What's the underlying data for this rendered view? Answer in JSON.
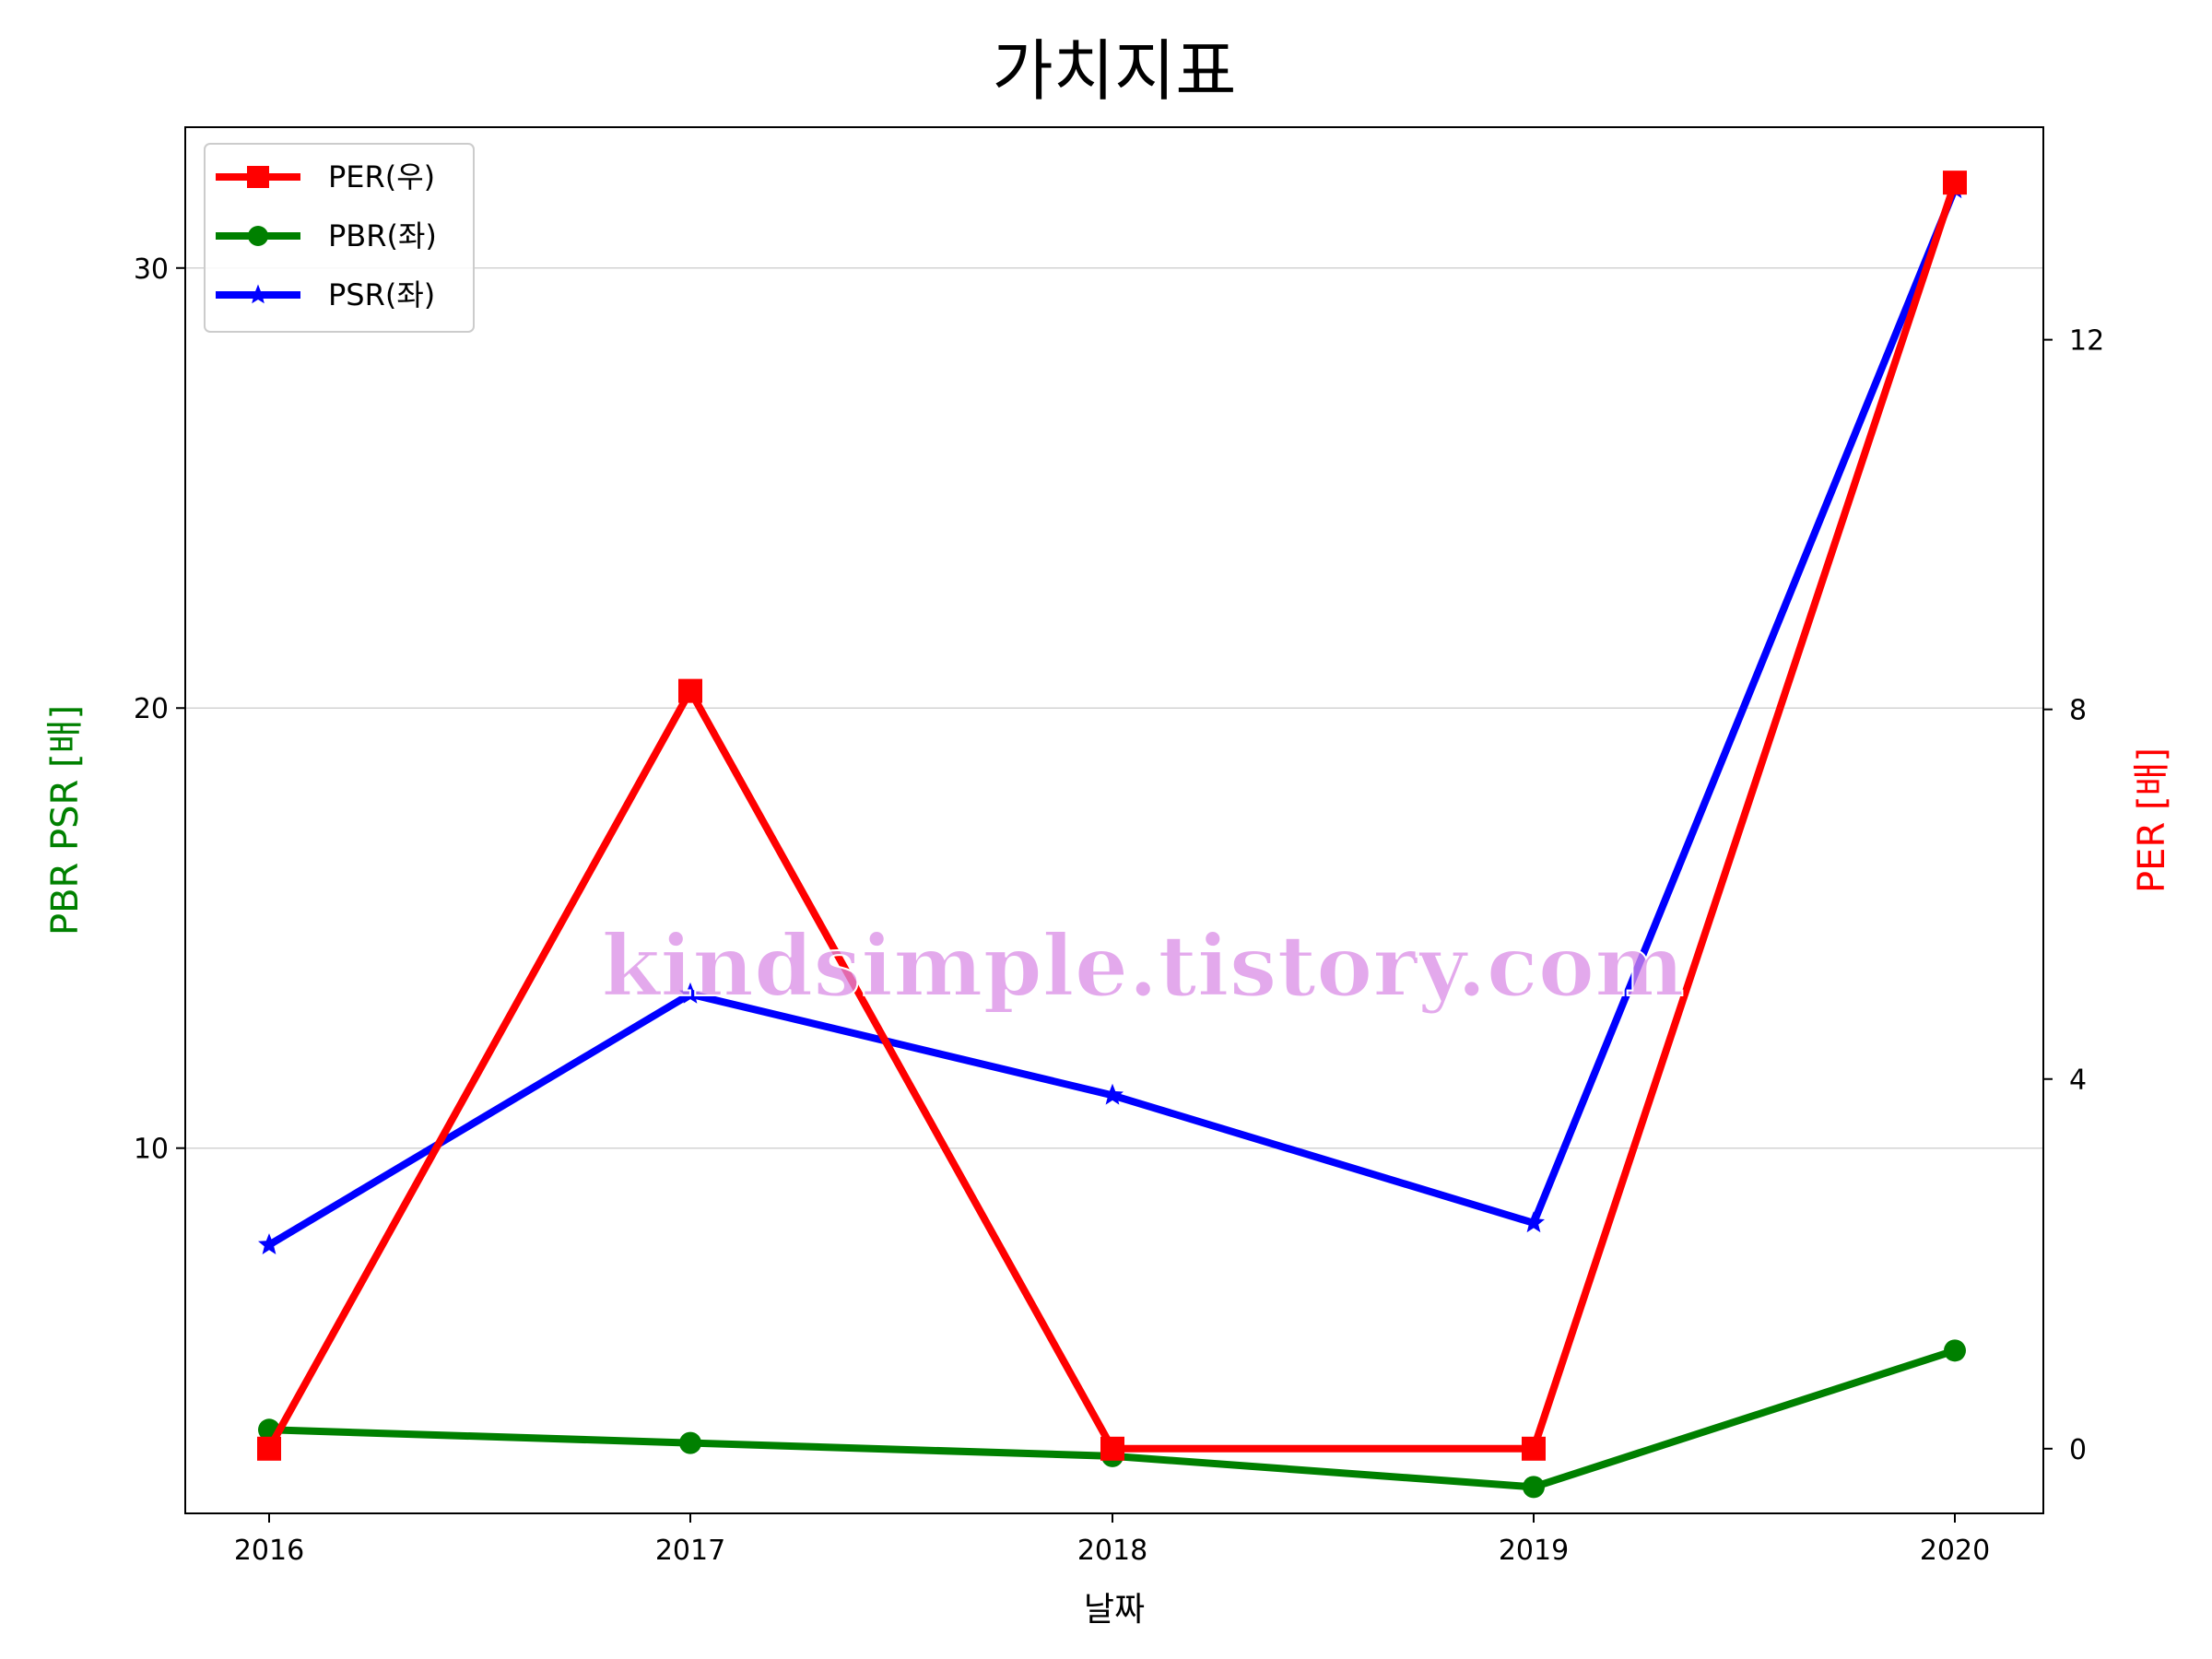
{
  "chart_data": {
    "type": "line",
    "title": "가치지표",
    "xlabel": "날짜",
    "ylabel_left": "PBR PSR [배]",
    "ylabel_right": "PER [배]",
    "categories": [
      "2016",
      "2017",
      "2018",
      "2019",
      "2020"
    ],
    "y_left": {
      "lim": [
        1.7,
        33.2
      ],
      "ticks": [
        10,
        20,
        30
      ],
      "tick_labels": [
        "10",
        "20",
        "30"
      ],
      "grid": true
    },
    "y_right": {
      "lim": [
        -0.7,
        14.3
      ],
      "ticks": [
        0,
        4,
        8,
        12
      ],
      "tick_labels": [
        "0",
        "4",
        "8",
        "12"
      ]
    },
    "series": [
      {
        "name": "PER(우)",
        "axis": "right",
        "marker": "square",
        "color": "#ff0000",
        "values": [
          0.0,
          8.2,
          0.0,
          0.0,
          13.7
        ]
      },
      {
        "name": "PBR(좌)",
        "axis": "left",
        "marker": "circle",
        "color": "#008000",
        "values": [
          3.6,
          3.3,
          3.0,
          2.3,
          5.4
        ]
      },
      {
        "name": "PSR(좌)",
        "axis": "left",
        "marker": "star",
        "color": "#0000ff",
        "values": [
          7.8,
          13.5,
          11.2,
          8.3,
          31.8
        ]
      }
    ],
    "legend_position": "top-left",
    "watermark": "kindsimple.tistory.com"
  }
}
